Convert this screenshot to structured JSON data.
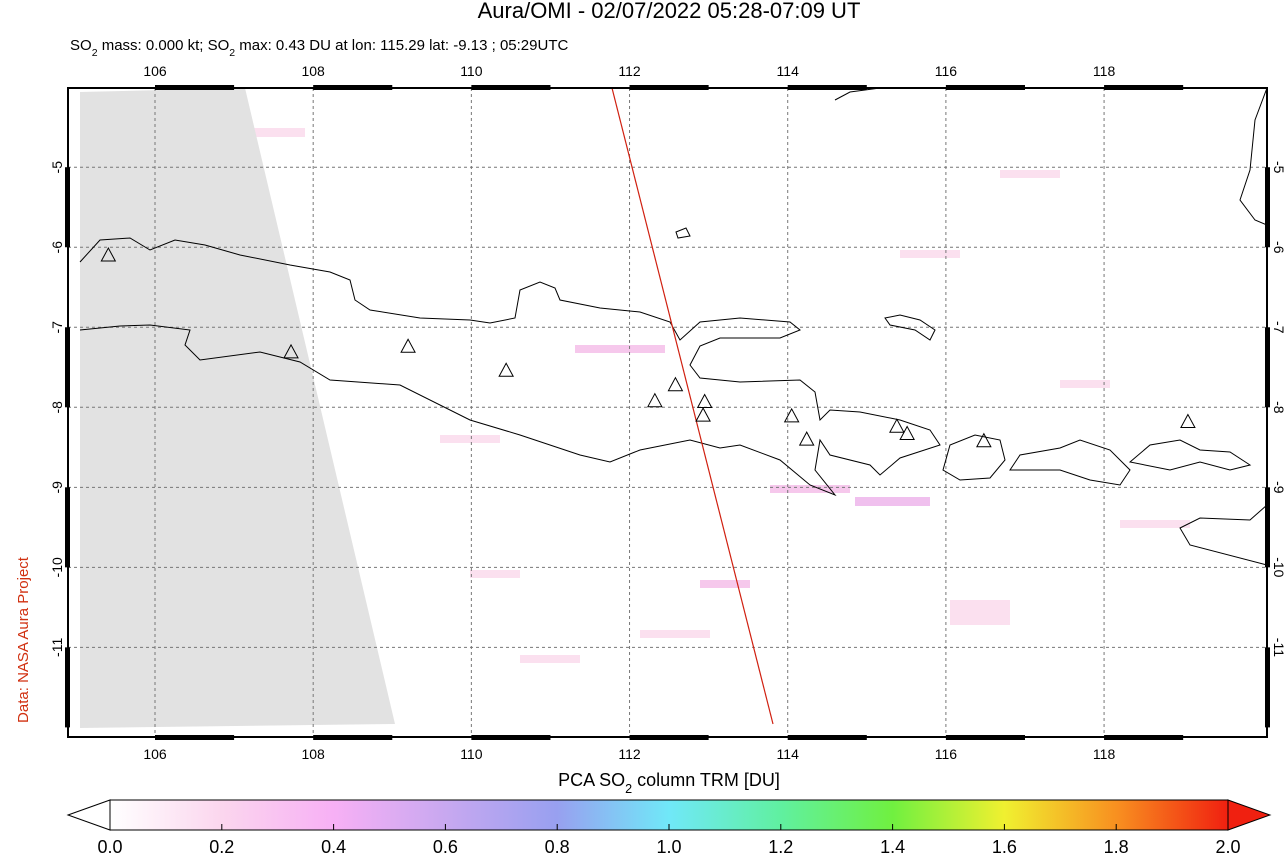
{
  "title": "Aura/OMI - 02/07/2022 05:28-07:09 UT",
  "subtitle": [
    "SO",
    "2",
    " mass: 0.000 kt; SO",
    "2",
    " max: 0.43 DU at lon: 115.29 lat: -9.13 ; 05:29UTC"
  ],
  "credit": "Data: NASA Aura Project",
  "map": {
    "xlim": [
      104.9,
      120.06
    ],
    "ylim": [
      -12.12,
      -4.01
    ],
    "xticks": [
      106,
      108,
      110,
      112,
      114,
      116,
      118
    ],
    "yticks": [
      -5,
      -6,
      -7,
      -8,
      -9,
      -10,
      -11
    ],
    "volcanoes": {
      "lon": [
        105.41,
        107.72,
        109.2,
        110.44,
        112.32,
        112.58,
        112.95,
        112.93,
        114.05,
        114.24,
        115.38,
        115.51,
        116.48,
        119.06
      ],
      "lat": [
        -6.11,
        -7.32,
        -7.25,
        -7.55,
        -7.93,
        -7.73,
        -7.94,
        -8.11,
        -8.12,
        -8.41,
        -8.25,
        -8.34,
        -8.43,
        -8.19
      ]
    }
  },
  "colorbar": {
    "title": [
      "PCA SO",
      "2",
      " column TRM [DU]"
    ],
    "lim": [
      0,
      2
    ],
    "ticks": [
      {
        "value": 0,
        "label": "0.0"
      },
      {
        "value": 0.2,
        "label": "0.2"
      },
      {
        "value": 0.4,
        "label": "0.4"
      },
      {
        "value": 0.6,
        "label": "0.6"
      },
      {
        "value": 0.8,
        "label": "0.8"
      },
      {
        "value": 1,
        "label": "1.0"
      },
      {
        "value": 1.2,
        "label": "1.2"
      },
      {
        "value": 1.4,
        "label": "1.4"
      },
      {
        "value": 1.6,
        "label": "1.6"
      },
      {
        "value": 1.8,
        "label": "1.8"
      },
      {
        "value": 2,
        "label": "2.0"
      }
    ]
  }
}
